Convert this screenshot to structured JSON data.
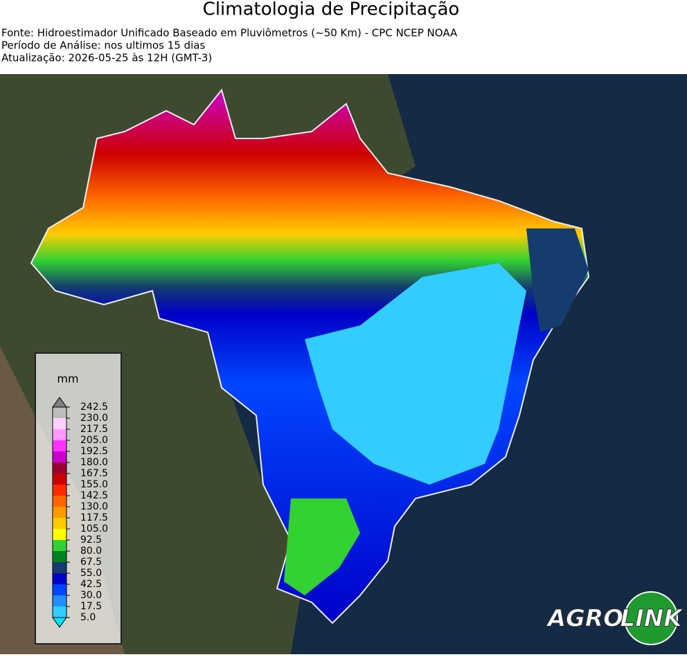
{
  "header": {
    "title": "Climatologia de Precipitação",
    "lines": [
      "Fonte: Hidroestimador Unificado Baseado em Pluviômetros (~50 Km) - CPC NCEP NOAA",
      "Período de Análise: nos ultimos 15 dias",
      "Atualização: 2026-05-25 às 12H (GMT-3)"
    ]
  },
  "legend": {
    "unit": "mm",
    "ticks": [
      {
        "value": 5,
        "label": "5.0"
      },
      {
        "value": 17.5,
        "label": "17.5"
      },
      {
        "value": 30,
        "label": "30.0"
      },
      {
        "value": 42.5,
        "label": "42.5"
      },
      {
        "value": 55,
        "label": "55.0"
      },
      {
        "value": 67.5,
        "label": "67.5"
      },
      {
        "value": 80,
        "label": "80.0"
      },
      {
        "value": 92.5,
        "label": "92.5"
      },
      {
        "value": 105,
        "label": "105.0"
      },
      {
        "value": 117.5,
        "label": "117.5"
      },
      {
        "value": 130,
        "label": "130.0"
      },
      {
        "value": 142.5,
        "label": "142.5"
      },
      {
        "value": 155,
        "label": "155.0"
      },
      {
        "value": 167.5,
        "label": "167.5"
      },
      {
        "value": 180,
        "label": "180.0"
      },
      {
        "value": 192.5,
        "label": "192.5"
      },
      {
        "value": 205,
        "label": "205.0"
      },
      {
        "value": 217.5,
        "label": "217.5"
      },
      {
        "value": 230,
        "label": "230.0"
      },
      {
        "value": 242.5,
        "label": "242.5"
      }
    ],
    "colors": [
      "#33ccff",
      "#1e90ff",
      "#0046ff",
      "#0000c8",
      "#143c6e",
      "#00821e",
      "#32d232",
      "#ffff00",
      "#ffcc00",
      "#ff9900",
      "#ff6600",
      "#ff2a00",
      "#cc0000",
      "#990033",
      "#cc00cc",
      "#ff33ff",
      "#ff99ff",
      "#ffd0ff",
      "#bdbdbd"
    ],
    "under_color": "#00e5ff",
    "over_color": "#808080"
  },
  "logo": {
    "left": "AGRO",
    "right": "LINK"
  }
}
